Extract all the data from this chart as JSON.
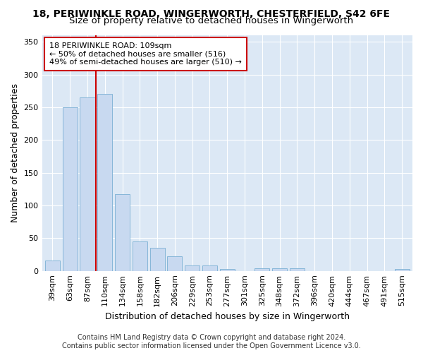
{
  "title_line1": "18, PERIWINKLE ROAD, WINGERWORTH, CHESTERFIELD, S42 6FE",
  "title_line2": "Size of property relative to detached houses in Wingerworth",
  "xlabel": "Distribution of detached houses by size in Wingerworth",
  "ylabel": "Number of detached properties",
  "categories": [
    "39sqm",
    "63sqm",
    "87sqm",
    "110sqm",
    "134sqm",
    "158sqm",
    "182sqm",
    "206sqm",
    "229sqm",
    "253sqm",
    "277sqm",
    "301sqm",
    "325sqm",
    "348sqm",
    "372sqm",
    "396sqm",
    "420sqm",
    "444sqm",
    "467sqm",
    "491sqm",
    "515sqm"
  ],
  "values": [
    16,
    250,
    265,
    270,
    117,
    45,
    35,
    22,
    8,
    8,
    3,
    0,
    4,
    4,
    4,
    0,
    0,
    0,
    0,
    0,
    3
  ],
  "bar_color": "#c8d9f0",
  "bar_edge_color": "#7aafd4",
  "vline_index": 3,
  "vline_color": "#cc0000",
  "annotation_text": "18 PERIWINKLE ROAD: 109sqm\n← 50% of detached houses are smaller (516)\n49% of semi-detached houses are larger (510) →",
  "annotation_box_facecolor": "#ffffff",
  "annotation_box_edgecolor": "#cc0000",
  "ylim": [
    0,
    360
  ],
  "yticks": [
    0,
    50,
    100,
    150,
    200,
    250,
    300,
    350
  ],
  "plot_bg_color": "#dce8f5",
  "grid_color": "#ffffff",
  "fig_bg_color": "#ffffff",
  "footer_line1": "Contains HM Land Registry data © Crown copyright and database right 2024.",
  "footer_line2": "Contains public sector information licensed under the Open Government Licence v3.0.",
  "title_fontsize": 10,
  "subtitle_fontsize": 9.5,
  "tick_fontsize": 8,
  "ylabel_fontsize": 9,
  "xlabel_fontsize": 9,
  "annotation_fontsize": 8,
  "footer_fontsize": 7
}
